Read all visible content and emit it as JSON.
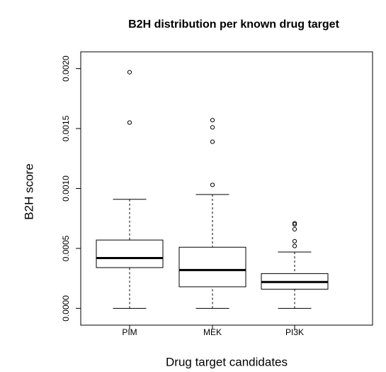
{
  "chart_data": {
    "type": "box",
    "title": "B2H distribution per known drug target",
    "xlabel": "Drug target candidates",
    "ylabel": "B2H score",
    "categories": [
      "PIM",
      "MEK",
      "PI3K"
    ],
    "boxes": [
      {
        "min": 0,
        "q1": 0.00034,
        "median": 0.00042,
        "q3": 0.00057,
        "max": 0.00091,
        "outliers": [
          0.00197,
          0.00155
        ]
      },
      {
        "min": 0,
        "q1": 0.00018,
        "median": 0.00032,
        "q3": 0.00051,
        "max": 0.00095,
        "outliers": [
          0.00157,
          0.00151,
          0.00139,
          0.00103
        ]
      },
      {
        "min": 0,
        "q1": 0.00016,
        "median": 0.00022,
        "q3": 0.00029,
        "max": 0.00047,
        "outliers": [
          0.00071,
          0.0007,
          0.00066,
          0.00056,
          0.00052
        ]
      }
    ],
    "ylim": [
      -0.00014,
      0.00214
    ],
    "yticks": [
      {
        "value": 0,
        "label": "0.0000"
      },
      {
        "value": 0.0005,
        "label": "0.0005"
      },
      {
        "value": 0.001,
        "label": "0.0010"
      },
      {
        "value": 0.0015,
        "label": "0.0015"
      },
      {
        "value": 0.002,
        "label": "0.0020"
      }
    ],
    "color": "#000000"
  }
}
